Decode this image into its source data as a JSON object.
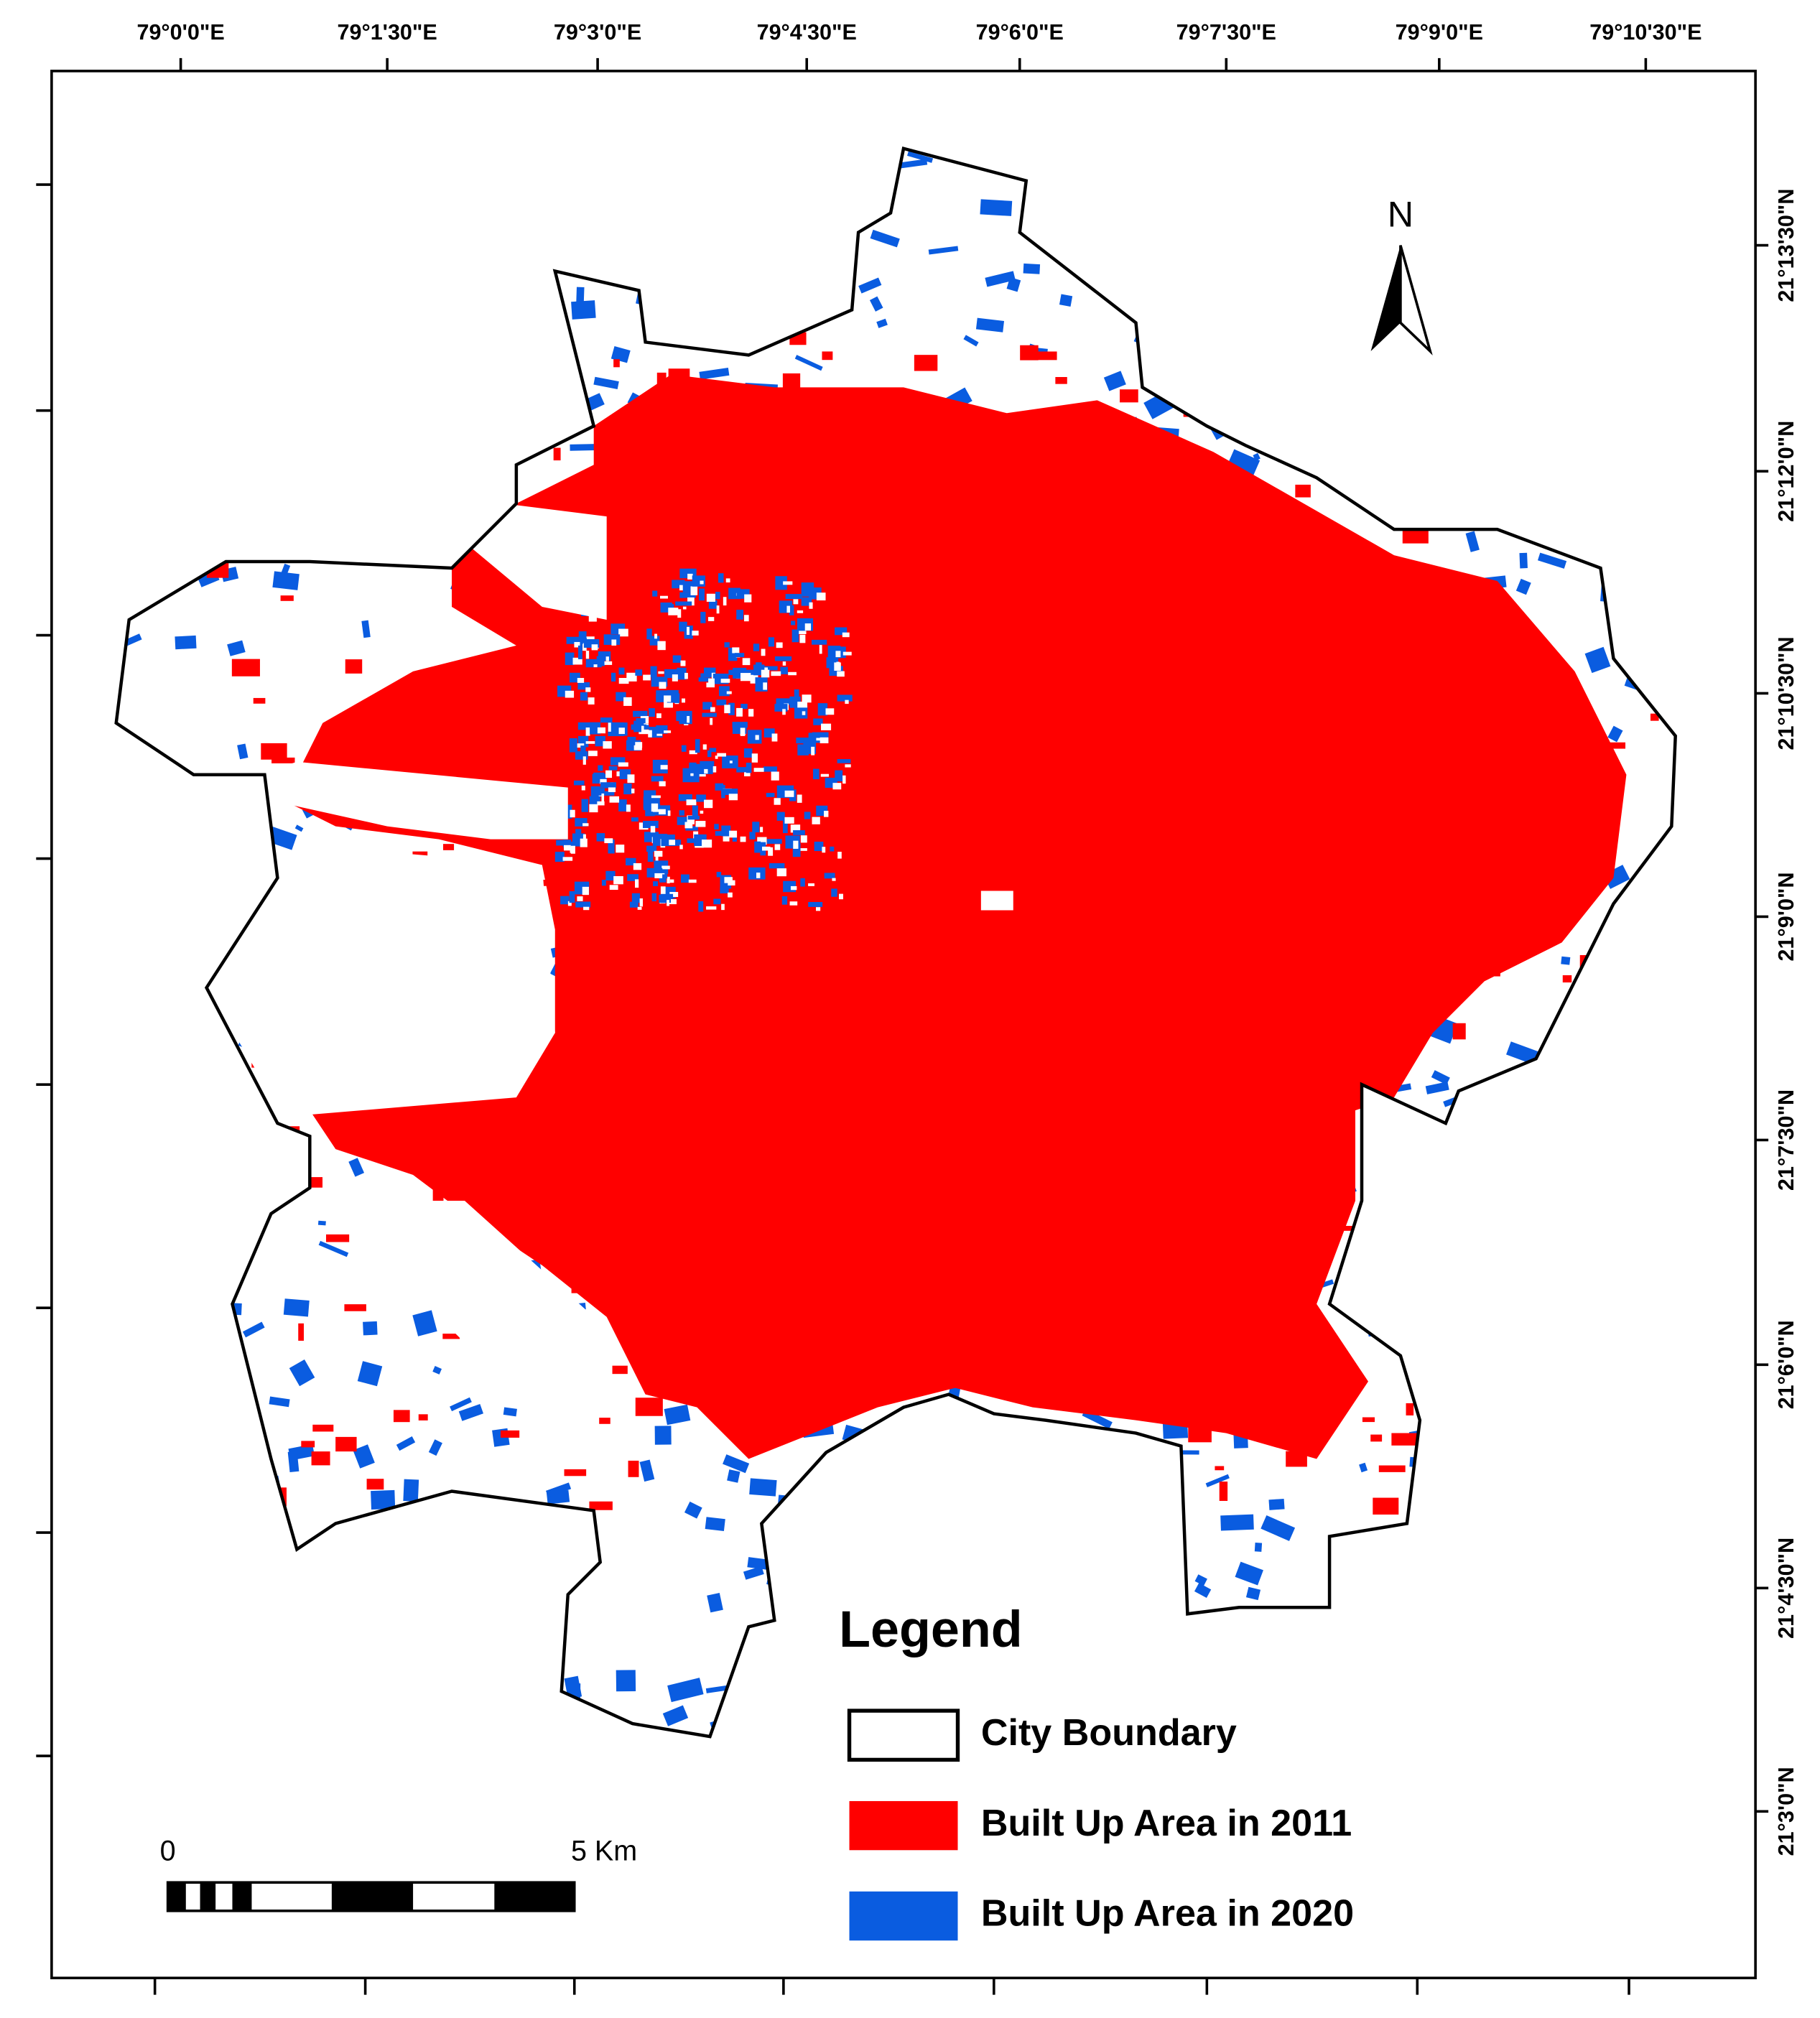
{
  "map": {
    "longitude_labels": [
      "79°0'0\"E",
      "79°1'30\"E",
      "79°3'0\"E",
      "79°4'30\"E",
      "79°6'0\"E",
      "79°7'30\"E",
      "79°9'0\"E",
      "79°10'30\"E"
    ],
    "latitude_labels": [
      "21°13'30\"N",
      "21°12'0\"N",
      "21°10'30\"N",
      "21°9'0\"N",
      "21°7'30\"N",
      "21°6'0\"N",
      "21°4'30\"N",
      "21°3'0\"N"
    ],
    "north_label": "N",
    "legend": {
      "title": "Legend",
      "items": [
        {
          "label": "City Boundary",
          "color": "#ffffff"
        },
        {
          "label": "Built Up Area in 2011",
          "color": "#ff0000"
        },
        {
          "label": "Built Up Area in 2020",
          "color": "#0a5ce0"
        }
      ]
    },
    "scale_bar": {
      "start": "0",
      "end": "5 Km"
    }
  }
}
